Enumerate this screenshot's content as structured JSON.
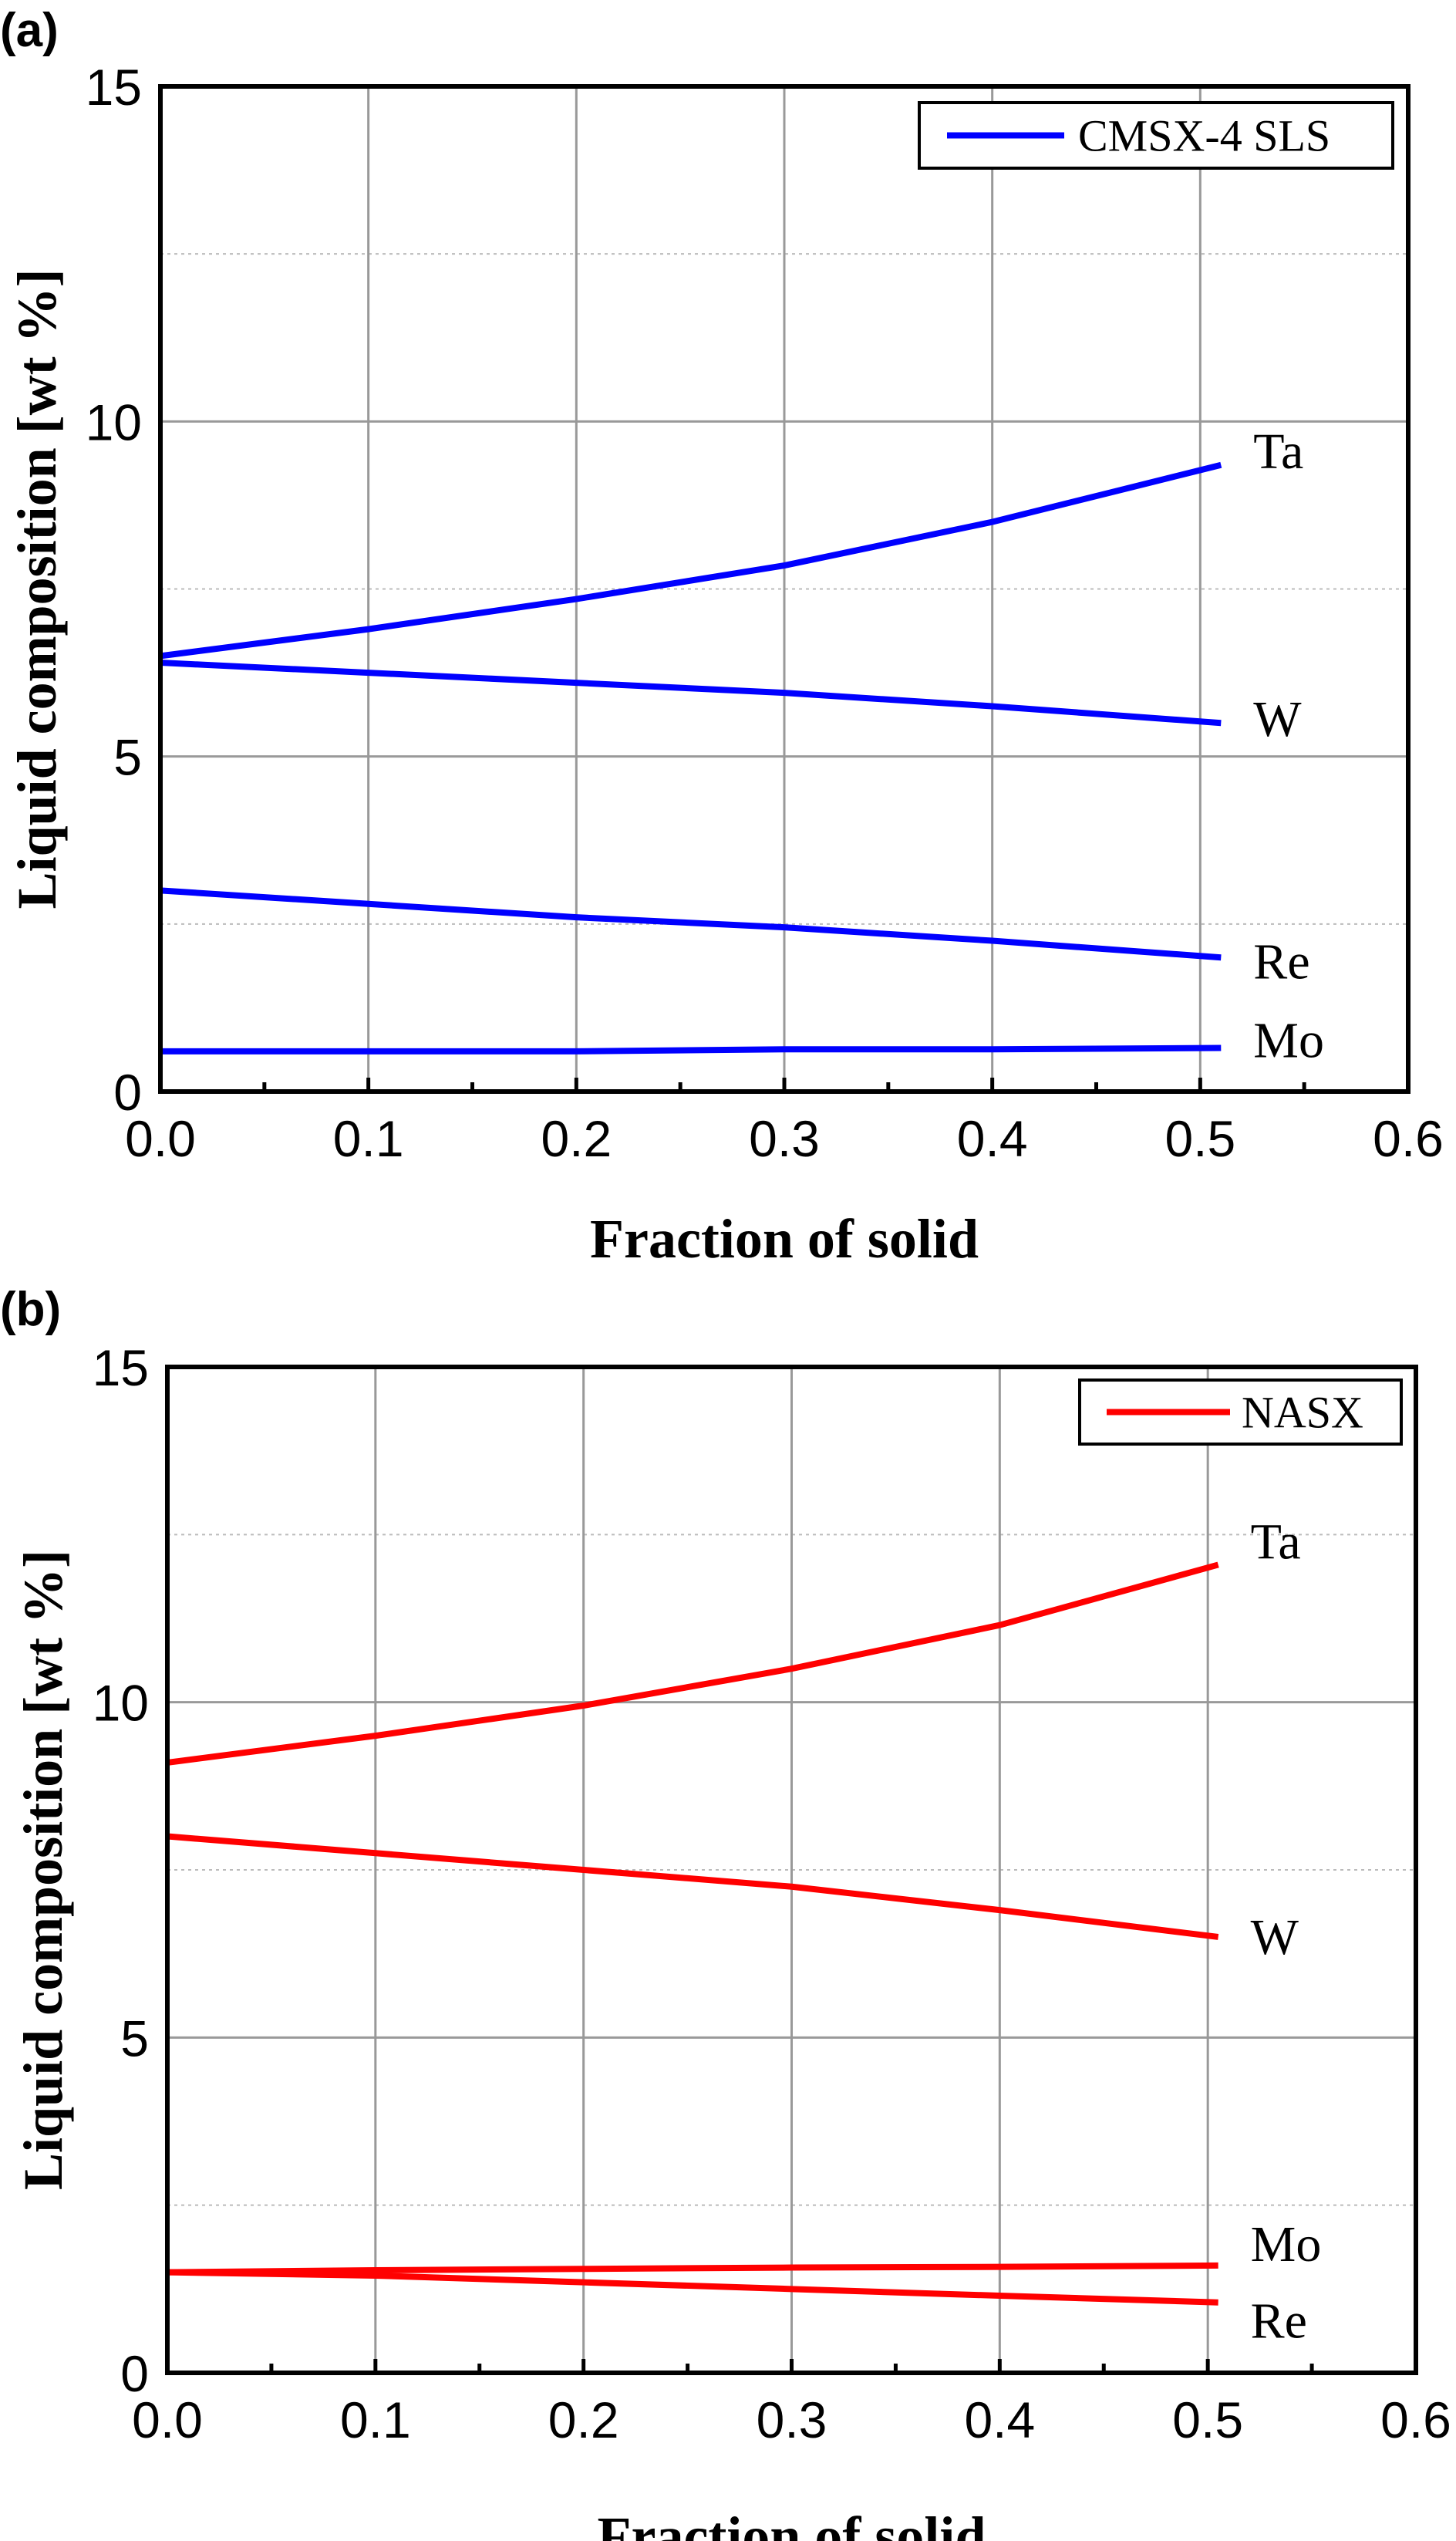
{
  "chart_data": [
    {
      "type": "line",
      "panel_label": "(a)",
      "xlabel": "Fraction of solid",
      "ylabel": "Liquid composition [wt %]",
      "xlim": [
        0,
        0.6
      ],
      "ylim": [
        0,
        15
      ],
      "xticks": [
        "0.0",
        "0.1",
        "0.2",
        "0.3",
        "0.4",
        "0.5",
        "0.6"
      ],
      "yticks": [
        "0",
        "5",
        "10",
        "15"
      ],
      "grid": true,
      "legend": {
        "placement": "top-right",
        "entries": [
          "CMSX-4 SLS"
        ]
      },
      "color": "#0000ff",
      "series": [
        {
          "name": "Ta",
          "x": [
            0,
            0.1,
            0.2,
            0.3,
            0.4,
            0.51
          ],
          "y": [
            6.5,
            6.9,
            7.35,
            7.85,
            8.5,
            9.35
          ]
        },
        {
          "name": "W",
          "x": [
            0,
            0.1,
            0.2,
            0.3,
            0.4,
            0.51
          ],
          "y": [
            6.4,
            6.25,
            6.1,
            5.95,
            5.75,
            5.5
          ]
        },
        {
          "name": "Re",
          "x": [
            0,
            0.1,
            0.2,
            0.3,
            0.4,
            0.51
          ],
          "y": [
            3.0,
            2.8,
            2.6,
            2.45,
            2.25,
            2.0
          ]
        },
        {
          "name": "Mo",
          "x": [
            0,
            0.1,
            0.2,
            0.3,
            0.4,
            0.51
          ],
          "y": [
            0.6,
            0.6,
            0.6,
            0.63,
            0.63,
            0.65
          ]
        }
      ]
    },
    {
      "type": "line",
      "panel_label": "(b)",
      "xlabel": "Fraction of solid",
      "ylabel": "Liquid composition [wt %]",
      "xlim": [
        0,
        0.6
      ],
      "ylim": [
        0,
        15
      ],
      "xticks": [
        "0.0",
        "0.1",
        "0.2",
        "0.3",
        "0.4",
        "0.5",
        "0.6"
      ],
      "yticks": [
        "0",
        "5",
        "10",
        "15"
      ],
      "grid": true,
      "legend": {
        "placement": "top-right",
        "entries": [
          "NASX"
        ]
      },
      "color": "#ff0000",
      "series": [
        {
          "name": "Ta",
          "x": [
            0,
            0.1,
            0.2,
            0.3,
            0.4,
            0.505
          ],
          "y": [
            9.1,
            9.5,
            9.95,
            10.5,
            11.15,
            12.05
          ]
        },
        {
          "name": "W",
          "x": [
            0,
            0.1,
            0.2,
            0.3,
            0.4,
            0.505
          ],
          "y": [
            8.0,
            7.75,
            7.5,
            7.25,
            6.9,
            6.5
          ]
        },
        {
          "name": "Mo",
          "x": [
            0,
            0.1,
            0.2,
            0.3,
            0.4,
            0.505
          ],
          "y": [
            1.5,
            1.53,
            1.55,
            1.57,
            1.58,
            1.6
          ]
        },
        {
          "name": "Re",
          "x": [
            0,
            0.1,
            0.2,
            0.3,
            0.4,
            0.505
          ],
          "y": [
            1.5,
            1.45,
            1.35,
            1.25,
            1.15,
            1.05
          ]
        }
      ]
    }
  ]
}
